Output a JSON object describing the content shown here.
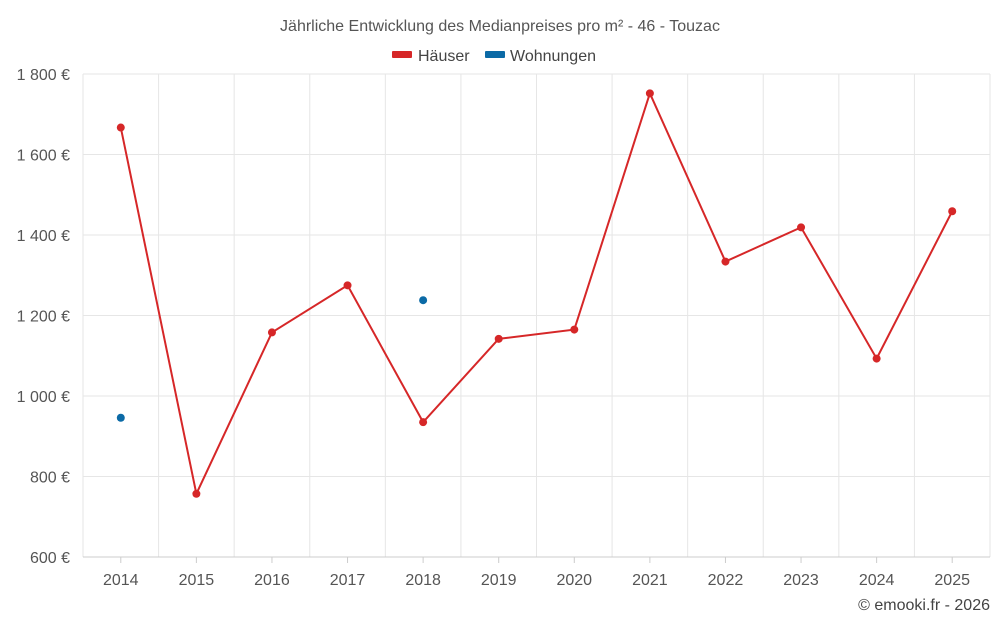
{
  "chart_data": {
    "type": "line",
    "title": "Jährliche Entwicklung des Medianpreises pro m² - 46 - Touzac",
    "categories": [
      "2014",
      "2015",
      "2016",
      "2017",
      "2018",
      "2019",
      "2020",
      "2021",
      "2022",
      "2023",
      "2024",
      "2025"
    ],
    "series": [
      {
        "name": "Häuser",
        "color": "#d62728",
        "values": [
          1667,
          757,
          1158,
          1275,
          935,
          1142,
          1165,
          1752,
          1334,
          1419,
          1093,
          1459
        ]
      },
      {
        "name": "Wohnungen",
        "color": "#0b6aa6",
        "values": [
          946,
          null,
          null,
          null,
          1238,
          null,
          null,
          null,
          null,
          null,
          null,
          null
        ]
      }
    ],
    "ylim": [
      600,
      1800
    ],
    "yticks": [
      600,
      800,
      1000,
      1200,
      1400,
      1600,
      1800
    ],
    "ytick_labels": [
      "600 €",
      "800 €",
      "1 000 €",
      "1 200 €",
      "1 400 €",
      "1 600 €",
      "1 800 €"
    ],
    "grid": true,
    "legend_position": "top-center",
    "credit": "© emooki.fr - 2026"
  }
}
